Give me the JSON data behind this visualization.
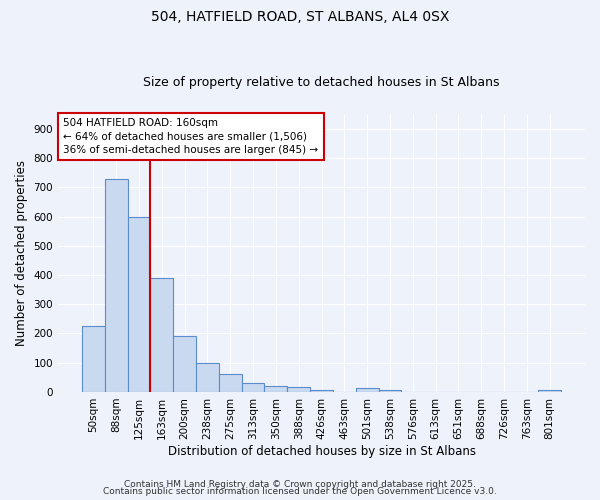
{
  "title1": "504, HATFIELD ROAD, ST ALBANS, AL4 0SX",
  "title2": "Size of property relative to detached houses in St Albans",
  "xlabel": "Distribution of detached houses by size in St Albans",
  "ylabel": "Number of detached properties",
  "categories": [
    "50sqm",
    "88sqm",
    "125sqm",
    "163sqm",
    "200sqm",
    "238sqm",
    "275sqm",
    "313sqm",
    "350sqm",
    "388sqm",
    "426sqm",
    "463sqm",
    "501sqm",
    "538sqm",
    "576sqm",
    "613sqm",
    "651sqm",
    "688sqm",
    "726sqm",
    "763sqm",
    "801sqm"
  ],
  "bar_values": [
    225,
    730,
    600,
    390,
    190,
    100,
    60,
    30,
    20,
    18,
    5,
    0,
    12,
    5,
    0,
    0,
    0,
    0,
    0,
    0,
    8
  ],
  "bar_color": "#c9d9f0",
  "bar_edge_color": "#5b8ccc",
  "bar_edge_width": 0.8,
  "red_line_x": 2.5,
  "red_line_color": "#cc0000",
  "annotation_line1": "504 HATFIELD ROAD: 160sqm",
  "annotation_line2": "← 64% of detached houses are smaller (1,506)",
  "annotation_line3": "36% of semi-detached houses are larger (845) →",
  "annotation_box_color": "#ffffff",
  "annotation_box_edge": "#cc0000",
  "ylim": [
    0,
    950
  ],
  "yticks": [
    0,
    100,
    200,
    300,
    400,
    500,
    600,
    700,
    800,
    900
  ],
  "footnote1": "Contains HM Land Registry data © Crown copyright and database right 2025.",
  "footnote2": "Contains public sector information licensed under the Open Government Licence v3.0.",
  "background_color": "#eef2fb",
  "grid_color": "#ffffff",
  "title_fontsize": 10,
  "subtitle_fontsize": 9,
  "axis_label_fontsize": 8.5,
  "tick_fontsize": 7.5,
  "annotation_fontsize": 7.5,
  "footnote_fontsize": 6.5
}
